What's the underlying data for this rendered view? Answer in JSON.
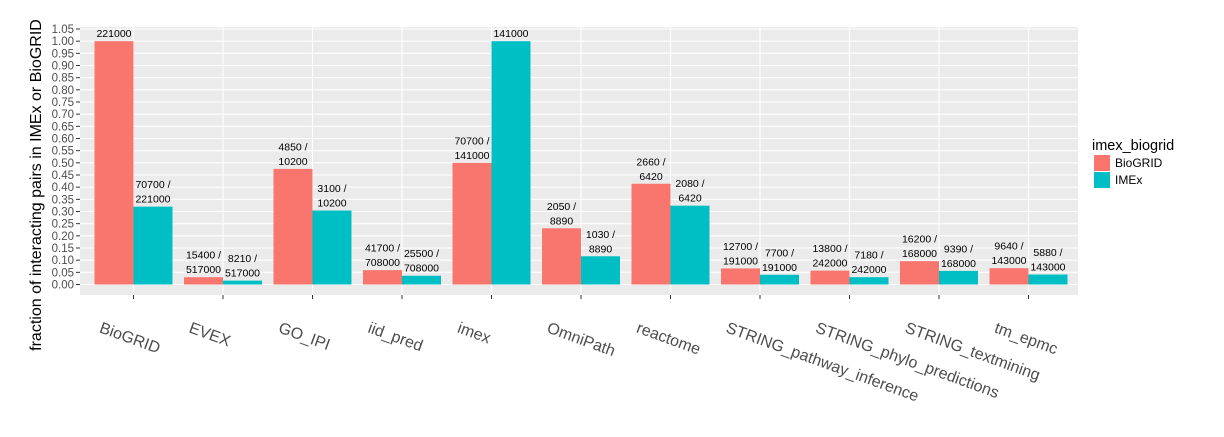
{
  "chart_data": {
    "type": "bar",
    "ylabel": "fraction of interacting pairs in IMEx or BioGRID",
    "xlabel": "",
    "ylim": [
      0,
      1.05
    ],
    "y_ticks": [
      "0.00",
      "0.05",
      "0.10",
      "0.15",
      "0.20",
      "0.25",
      "0.30",
      "0.35",
      "0.40",
      "0.45",
      "0.50",
      "0.55",
      "0.60",
      "0.65",
      "0.70",
      "0.75",
      "0.80",
      "0.85",
      "0.90",
      "0.95",
      "1.00",
      "1.05"
    ],
    "categories": [
      "BioGRID",
      "EVEX",
      "GO_IPI",
      "iid_pred",
      "imex",
      "OmniPath",
      "reactome",
      "STRING_pathway_inference",
      "STRING_phylo_predictions",
      "STRING_textmining",
      "tm_epmc"
    ],
    "legend": {
      "title": "imex_biogrid",
      "position": "right"
    },
    "series": [
      {
        "name": "BioGRID",
        "color": "#F8766D",
        "values": [
          1.0,
          0.03,
          0.475,
          0.059,
          0.5,
          0.231,
          0.414,
          0.066,
          0.057,
          0.096,
          0.067
        ],
        "labels": [
          [
            "221000"
          ],
          [
            "15400 /",
            "517000"
          ],
          [
            "4850 /",
            "10200"
          ],
          [
            "41700 /",
            "708000"
          ],
          [
            "70700 /",
            "141000"
          ],
          [
            "2050 /",
            "8890"
          ],
          [
            "2660 /",
            "6420"
          ],
          [
            "12700 /",
            "191000"
          ],
          [
            "13800 /",
            "242000"
          ],
          [
            "16200 /",
            "168000"
          ],
          [
            "9640 /",
            "143000"
          ]
        ]
      },
      {
        "name": "IMEx",
        "color": "#00BFC4",
        "values": [
          0.32,
          0.016,
          0.304,
          0.036,
          1.0,
          0.116,
          0.324,
          0.04,
          0.03,
          0.056,
          0.041
        ],
        "labels": [
          [
            "70700 /",
            "221000"
          ],
          [
            "8210 /",
            "517000"
          ],
          [
            "3100 /",
            "10200"
          ],
          [
            "25500 /",
            "708000"
          ],
          [
            "141000"
          ],
          [
            "1030 /",
            "8890"
          ],
          [
            "2080 /",
            "6420"
          ],
          [
            "7700 /",
            "191000"
          ],
          [
            "7180 /",
            "242000"
          ],
          [
            "9390 /",
            "168000"
          ],
          [
            "5880 /",
            "143000"
          ]
        ]
      }
    ]
  }
}
